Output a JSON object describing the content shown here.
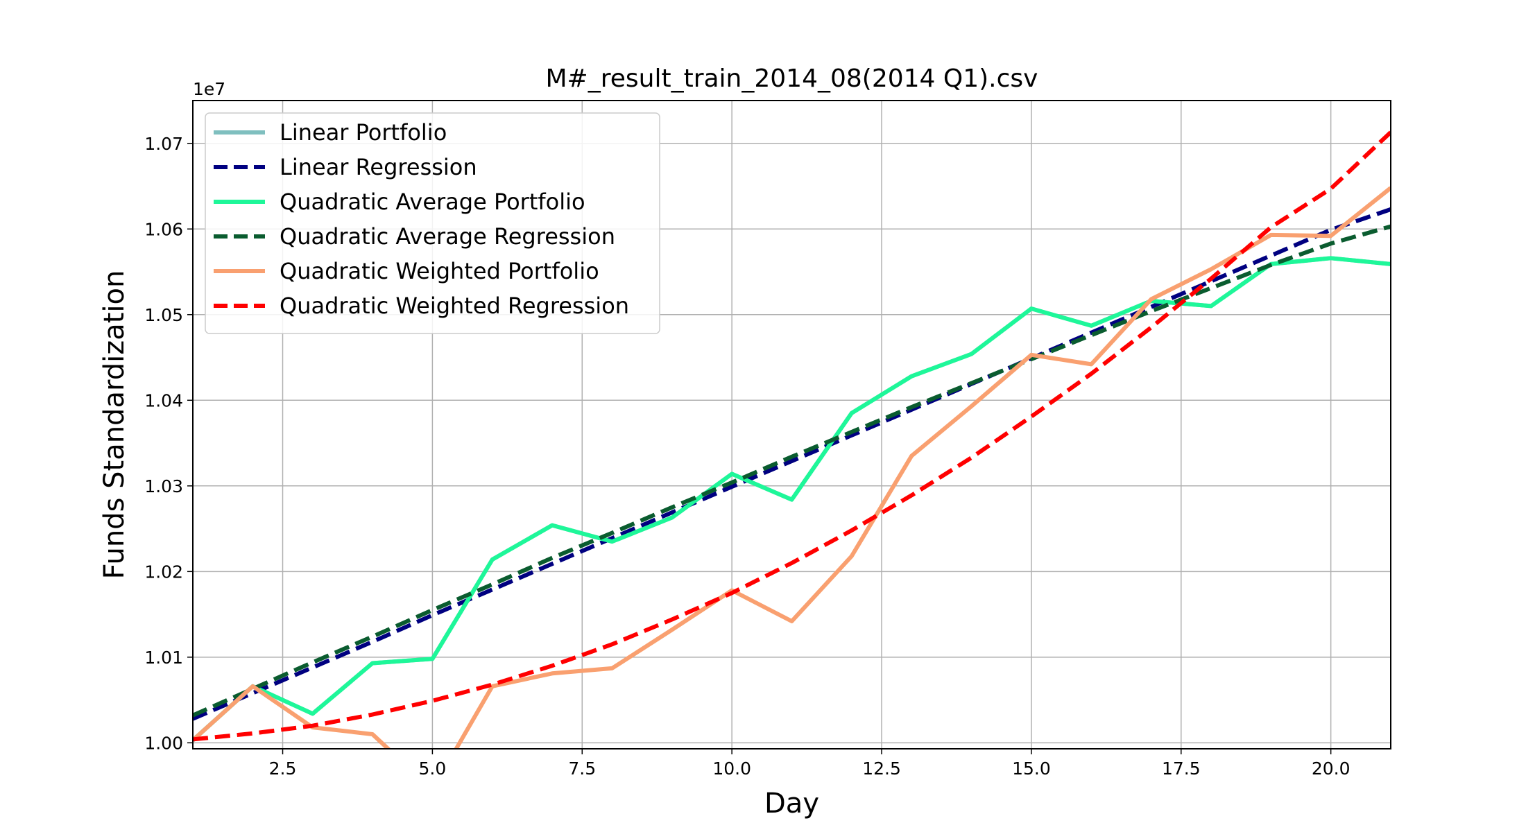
{
  "chart_data": {
    "type": "line",
    "title": "M#_result_train_2014_08(2014 Q1).csv",
    "xlabel": "Day",
    "ylabel": "Funds Standardization",
    "y_offset_label": "1e7",
    "y_scale_factor": 10000000,
    "xlim": [
      1,
      21
    ],
    "ylim": [
      0.9993,
      1.075
    ],
    "x_ticks": [
      2.5,
      5.0,
      7.5,
      10.0,
      12.5,
      15.0,
      17.5,
      20.0
    ],
    "x_tick_labels": [
      "2.5",
      "5.0",
      "7.5",
      "10.0",
      "12.5",
      "15.0",
      "17.5",
      "20.0"
    ],
    "y_ticks": [
      1.0,
      1.01,
      1.02,
      1.03,
      1.04,
      1.05,
      1.06,
      1.07
    ],
    "y_tick_labels": [
      "1.00",
      "1.01",
      "1.02",
      "1.03",
      "1.04",
      "1.05",
      "1.06",
      "1.07"
    ],
    "grid": true,
    "legend_position": "upper-left",
    "x": [
      1,
      2,
      3,
      4,
      5,
      6,
      7,
      8,
      9,
      10,
      11,
      12,
      13,
      14,
      15,
      16,
      17,
      18,
      19,
      20,
      21
    ],
    "series": [
      {
        "name": "Linear Portfolio",
        "color": "#7fbfbf",
        "style": "solid",
        "values": [
          1.0003,
          1.0066,
          1.0034,
          1.0093,
          1.0098,
          1.0214,
          1.0254,
          1.0235,
          1.0263,
          1.0314,
          1.0284,
          1.0385,
          1.0428,
          1.0454,
          1.0507,
          1.0487,
          1.0516,
          1.051,
          1.0559,
          1.0566,
          1.0559
        ]
      },
      {
        "name": "Linear Regression",
        "color": "#000080",
        "style": "dashed",
        "values": [
          1.0028,
          1.0058,
          1.0088,
          1.0118,
          1.0149,
          1.0179,
          1.0209,
          1.0239,
          1.0269,
          1.0299,
          1.0329,
          1.0359,
          1.0389,
          1.0419,
          1.0449,
          1.0479,
          1.0509,
          1.0539,
          1.0569,
          1.0599,
          1.0623
        ]
      },
      {
        "name": "Quadratic Average Portfolio",
        "color": "#1ef799",
        "style": "solid",
        "values": [
          1.0003,
          1.0066,
          1.0034,
          1.0093,
          1.0098,
          1.0214,
          1.0254,
          1.0235,
          1.0263,
          1.0314,
          1.0284,
          1.0385,
          1.0428,
          1.0454,
          1.0507,
          1.0487,
          1.0516,
          1.051,
          1.0559,
          1.0566,
          1.0559
        ]
      },
      {
        "name": "Quadratic Average Regression",
        "color": "#0a5c2f",
        "style": "dashed",
        "values": [
          1.0032,
          1.0063,
          1.0094,
          1.0124,
          1.0155,
          1.0185,
          1.0216,
          1.0245,
          1.0275,
          1.0304,
          1.0334,
          1.0363,
          1.0392,
          1.042,
          1.0448,
          1.0476,
          1.0504,
          1.0531,
          1.0558,
          1.0583,
          1.0603
        ]
      },
      {
        "name": "Quadratic Weighted Portfolio",
        "color": "#f9a070",
        "style": "solid",
        "values": [
          1.0003,
          1.0066,
          1.0018,
          1.001,
          0.9945,
          1.0066,
          1.0081,
          1.0087,
          1.0132,
          1.0178,
          1.0142,
          1.0218,
          1.0335,
          1.0393,
          1.0453,
          1.0442,
          1.0518,
          1.0553,
          1.0593,
          1.0592,
          1.0648
        ]
      },
      {
        "name": "Quadratic Weighted Regression",
        "color": "#ff0000",
        "style": "dashed",
        "values": [
          1.0004,
          1.0011,
          1.002,
          1.0033,
          1.0049,
          1.0068,
          1.009,
          1.0115,
          1.0144,
          1.0175,
          1.021,
          1.0248,
          1.0289,
          1.0333,
          1.0381,
          1.0431,
          1.0485,
          1.0542,
          1.0602,
          1.0647,
          1.0713
        ]
      }
    ]
  }
}
